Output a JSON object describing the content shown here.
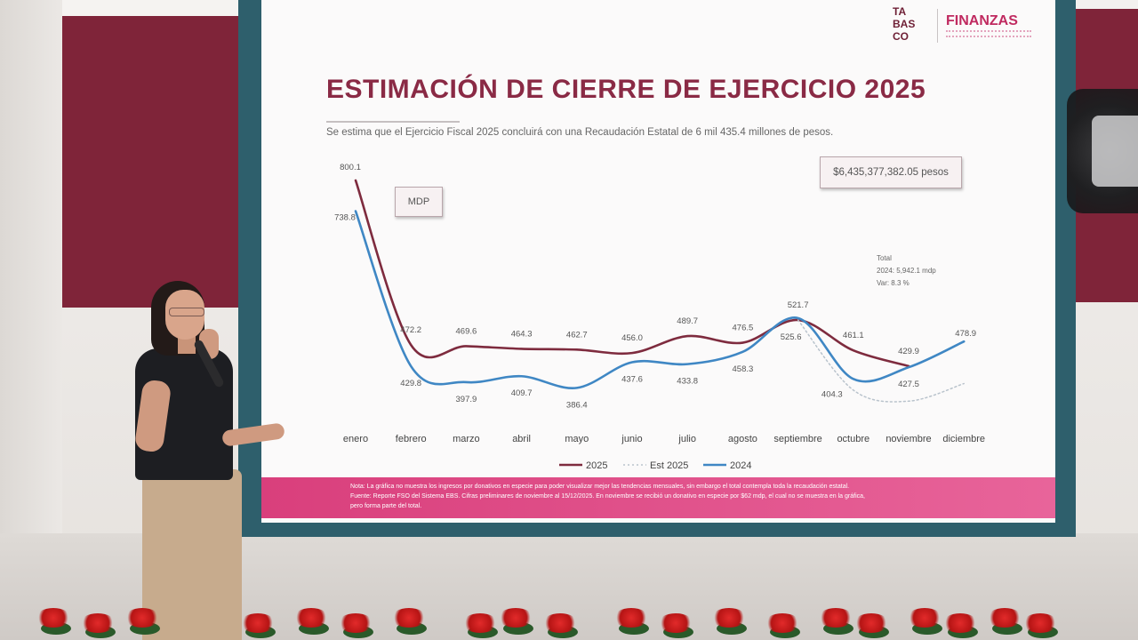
{
  "slide": {
    "logo_left_text": "TABASCO",
    "logo_right_text": "FINANZAS",
    "title": "ESTIMACIÓN DE CIERRE DE EJERCICIO 2025",
    "subtitle": "Se estima que el Ejercicio Fiscal 2025 concluirá con una Recaudación Estatal de 6 mil 435.4 millones de pesos.",
    "unit_box": "MDP",
    "total_box": "$6,435,377,382.05 pesos",
    "total_block": {
      "label": "Total",
      "line_2024": "2024: 5,942.1 mdp",
      "line_var": "Var: 8.3 %"
    },
    "notes": [
      "Nota: La gráfica no muestra los ingresos por donativos en especie para poder visualizar mejor las tendencias mensuales, sin embargo el total contempla toda la recaudación estatal.",
      "Fuente: Reporte FSO del Sistema EBS. Cifras preliminares de noviembre al 15/12/2025. En noviembre se recibió un donativo en especie por $62 mdp, el cual no se muestra en la gráfica,",
      "pero forma parte del total."
    ]
  },
  "chart_data": {
    "type": "line",
    "categories": [
      "enero",
      "febrero",
      "marzo",
      "abril",
      "mayo",
      "junio",
      "julio",
      "agosto",
      "septiembre",
      "octubre",
      "noviembre",
      "diciembre"
    ],
    "series": [
      {
        "name": "2025",
        "color": "#7e2b3e",
        "values": [
          800.1,
          472.2,
          469.6,
          464.3,
          462.7,
          456.0,
          489.7,
          476.5,
          521.7,
          461.1,
          429.9,
          null
        ],
        "labels": [
          "800.1",
          "472.2",
          "469.6",
          "464.3",
          "462.7",
          "456.0",
          "489.7",
          "476.5",
          "521.7",
          "461.1",
          "429.9",
          ""
        ]
      },
      {
        "name": "Est 2025",
        "color": "#b9c3cc",
        "dashed": true,
        "values": [
          null,
          null,
          null,
          null,
          null,
          null,
          null,
          null,
          521.7,
          382,
          360,
          395
        ]
      },
      {
        "name": "2024",
        "color": "#3f87c4",
        "values": [
          738.8,
          429.8,
          397.9,
          409.7,
          386.4,
          437.6,
          433.8,
          458.3,
          525.6,
          404.3,
          427.5,
          478.9
        ],
        "labels": [
          "738.8",
          "429.8",
          "397.9",
          "409.7",
          "386.4",
          "437.6",
          "433.8",
          "458.3",
          "525.6",
          "404.3",
          "427.5",
          "478.9"
        ]
      }
    ],
    "legend": [
      "2025",
      "Est 2025",
      "2024"
    ],
    "legend_position": "bottom-center",
    "grid": false
  }
}
